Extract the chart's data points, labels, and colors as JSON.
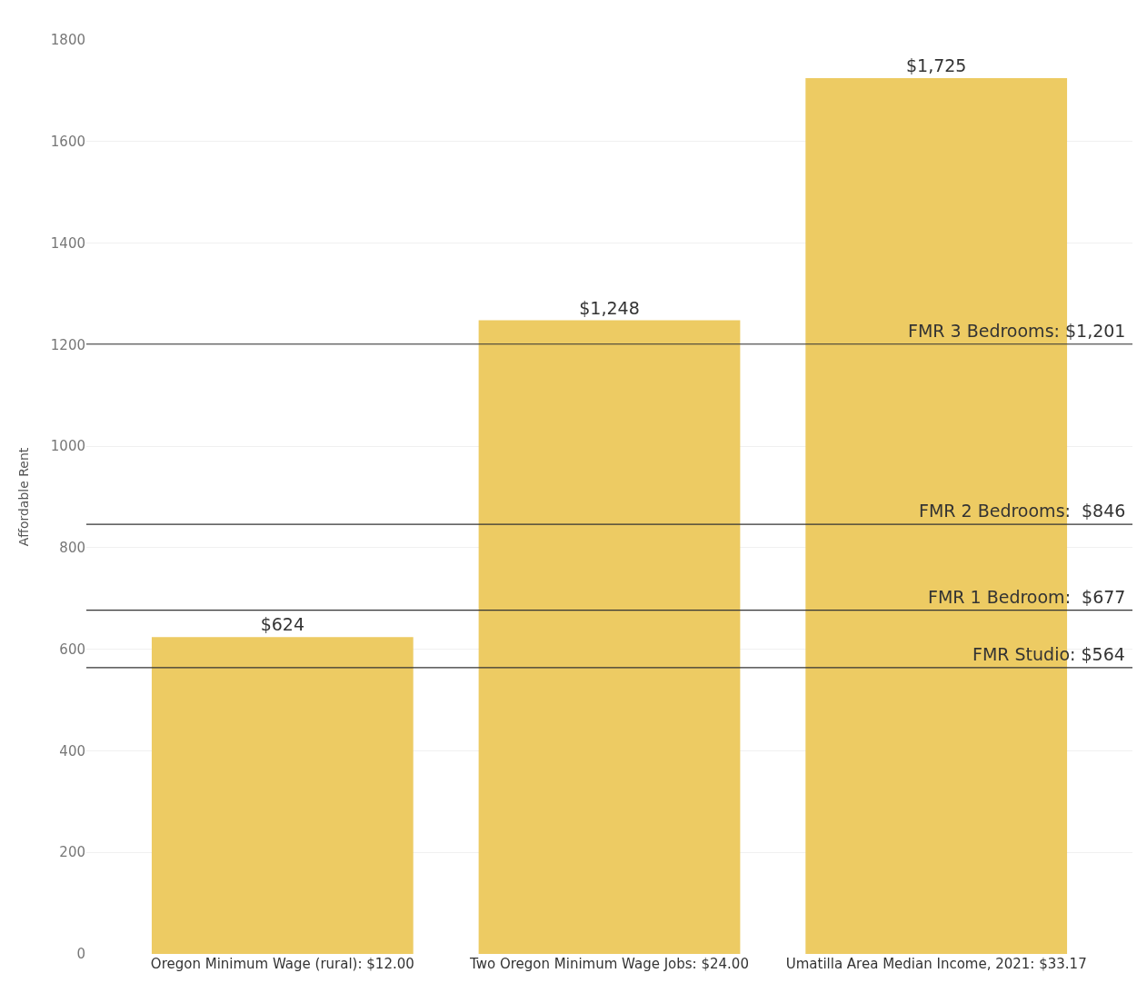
{
  "chart_data": {
    "type": "bar",
    "ylabel": "Affordable Rent",
    "categories": [
      "Oregon Minimum Wage (rural): $12.00",
      "Two Oregon Minimum Wage Jobs: $24.00",
      "Umatilla Area Median Income, 2021: $33.17"
    ],
    "values": [
      624,
      1248,
      1725
    ],
    "value_labels": [
      "$624",
      "$1,248",
      "$1,725"
    ],
    "color": "#edcb63",
    "ylim": [
      0,
      1800
    ],
    "yticks": [
      0,
      200,
      400,
      600,
      800,
      1000,
      1200,
      1400,
      1600,
      1800
    ],
    "grid": "y",
    "ref_lines": [
      {
        "axis": "y",
        "value": 1201,
        "label": "FMR 3 Bedrooms: $1,201",
        "color": "#333333"
      },
      {
        "axis": "y",
        "value": 846,
        "label": "FMR 2 Bedrooms:  $846",
        "color": "#333333"
      },
      {
        "axis": "y",
        "value": 677,
        "label": "FMR 1 Bedroom:  $677",
        "color": "#333333"
      },
      {
        "axis": "y",
        "value": 564,
        "label": "FMR Studio: $564",
        "color": "#333333"
      }
    ]
  }
}
